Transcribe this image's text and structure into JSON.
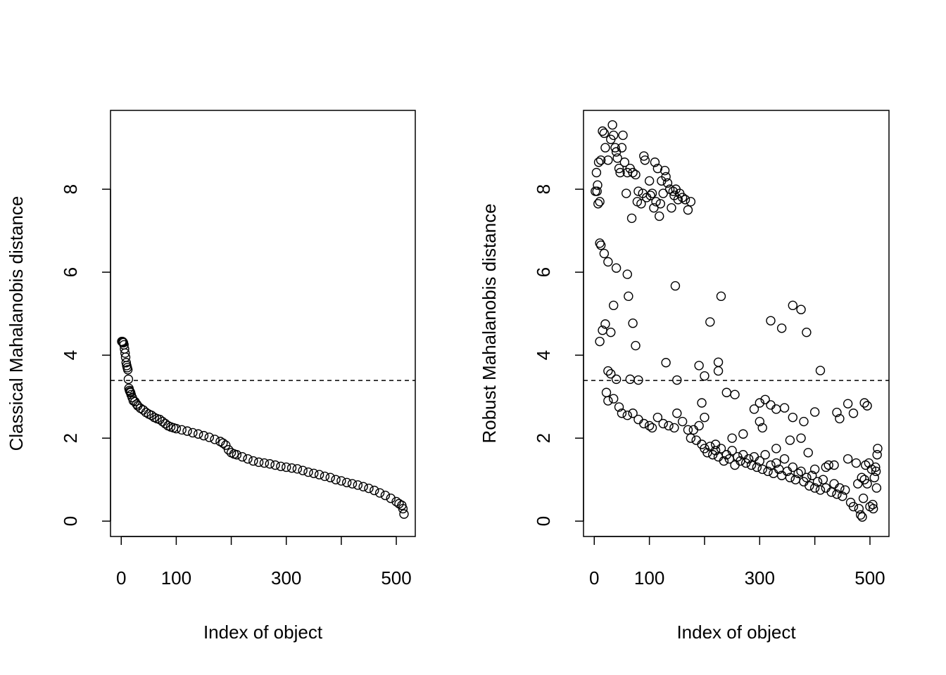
{
  "chart_data": [
    {
      "type": "scatter",
      "y_label": "Classical Mahalanobis distance",
      "x_label": "Index of object",
      "color": "#000000",
      "xlim": [
        -19.5,
        534.5
      ],
      "ylim": [
        -0.37,
        9.9
      ],
      "xticks": [
        0,
        100,
        {
          "value": 200,
          "label": null
        },
        300,
        {
          "value": 400,
          "label": null
        },
        500
      ],
      "yticks": [
        0,
        2,
        4,
        6,
        8
      ],
      "hline": 3.39,
      "x": [
        1,
        2,
        3,
        4,
        5,
        6,
        7,
        8,
        9,
        10,
        11,
        12,
        13,
        14,
        15,
        16,
        17,
        18,
        20,
        22,
        25,
        28,
        30,
        35,
        40,
        45,
        50,
        55,
        60,
        65,
        70,
        75,
        80,
        85,
        90,
        95,
        100,
        110,
        120,
        130,
        140,
        150,
        160,
        170,
        180,
        185,
        190,
        195,
        200,
        205,
        210,
        220,
        230,
        240,
        250,
        260,
        270,
        280,
        290,
        300,
        310,
        320,
        330,
        340,
        350,
        360,
        370,
        380,
        390,
        400,
        410,
        420,
        430,
        440,
        450,
        460,
        470,
        480,
        490,
        500,
        505,
        510,
        512,
        514
      ],
      "values": [
        4.33,
        4.33,
        4.32,
        4.3,
        4.25,
        4.15,
        4.05,
        3.95,
        3.82,
        3.75,
        3.7,
        3.65,
        3.42,
        3.2,
        3.15,
        3.12,
        3.1,
        3.05,
        2.98,
        2.9,
        2.88,
        2.82,
        2.78,
        2.72,
        2.68,
        2.62,
        2.58,
        2.55,
        2.5,
        2.47,
        2.45,
        2.4,
        2.35,
        2.3,
        2.27,
        2.25,
        2.23,
        2.2,
        2.17,
        2.13,
        2.1,
        2.06,
        2.02,
        1.97,
        1.92,
        1.88,
        1.83,
        1.72,
        1.65,
        1.62,
        1.6,
        1.55,
        1.5,
        1.45,
        1.42,
        1.4,
        1.38,
        1.35,
        1.32,
        1.3,
        1.28,
        1.26,
        1.22,
        1.18,
        1.15,
        1.12,
        1.08,
        1.05,
        1.0,
        0.97,
        0.93,
        0.9,
        0.87,
        0.83,
        0.79,
        0.74,
        0.68,
        0.62,
        0.55,
        0.47,
        0.42,
        0.38,
        0.3,
        0.17
      ]
    },
    {
      "type": "scatter",
      "y_label": "Robust Mahalanobis distance",
      "x_label": "Index of object",
      "color": "#000000",
      "xlim": [
        -19.5,
        534.5
      ],
      "ylim": [
        -0.37,
        9.9
      ],
      "xticks": [
        0,
        100,
        {
          "value": 200,
          "label": null
        },
        300,
        {
          "value": 400,
          "label": null
        },
        500
      ],
      "yticks": [
        0,
        2,
        4,
        6,
        8
      ],
      "hline": 3.39,
      "x": [
        2,
        4,
        5,
        6,
        7,
        8,
        10,
        12,
        15,
        18,
        20,
        25,
        30,
        33,
        35,
        38,
        40,
        42,
        45,
        47,
        50,
        52,
        55,
        58,
        60,
        65,
        68,
        70,
        75,
        78,
        80,
        85,
        88,
        90,
        92,
        95,
        100,
        102,
        105,
        108,
        110,
        112,
        115,
        118,
        120,
        122,
        125,
        128,
        130,
        133,
        137,
        140,
        143,
        145,
        148,
        152,
        155,
        160,
        165,
        170,
        175,
        10,
        12,
        18,
        25,
        40,
        60,
        62,
        147,
        230,
        35,
        70,
        20,
        15,
        10,
        30,
        75,
        210,
        320,
        340,
        360,
        375,
        385,
        130,
        225,
        190,
        225,
        25,
        30,
        40,
        65,
        80,
        150,
        410,
        200,
        240,
        255,
        310,
        300,
        320,
        330,
        345,
        290,
        400,
        440,
        470,
        490,
        495,
        460,
        445,
        380,
        360,
        300,
        305,
        200,
        195,
        22,
        25,
        35,
        45,
        50,
        60,
        70,
        80,
        90,
        100,
        105,
        115,
        125,
        135,
        145,
        150,
        160,
        170,
        175,
        180,
        185,
        190,
        195,
        200,
        205,
        210,
        215,
        220,
        225,
        230,
        235,
        240,
        245,
        250,
        255,
        260,
        265,
        270,
        275,
        280,
        285,
        290,
        295,
        300,
        305,
        310,
        315,
        320,
        325,
        330,
        335,
        340,
        345,
        350,
        355,
        360,
        365,
        370,
        375,
        380,
        385,
        390,
        395,
        400,
        405,
        410,
        415,
        420,
        425,
        430,
        435,
        440,
        445,
        450,
        455,
        460,
        465,
        470,
        475,
        480,
        483,
        486,
        488,
        490,
        492,
        495,
        498,
        500,
        503,
        505,
        508,
        510,
        512,
        514,
        513,
        511,
        506,
        485,
        478,
        220,
        250,
        270,
        330,
        355,
        375,
        388,
        400,
        420,
        435
      ],
      "values": [
        7.95,
        8.4,
        7.95,
        8.1,
        7.65,
        8.65,
        7.7,
        8.7,
        9.4,
        9.35,
        9.0,
        8.7,
        9.2,
        9.55,
        9.3,
        9.0,
        8.9,
        8.75,
        8.5,
        8.4,
        9.0,
        9.3,
        8.65,
        7.9,
        8.4,
        8.5,
        7.3,
        8.4,
        8.35,
        7.7,
        7.95,
        7.65,
        7.9,
        8.8,
        8.7,
        7.8,
        8.2,
        7.85,
        7.9,
        7.55,
        8.65,
        7.7,
        8.5,
        7.35,
        7.65,
        8.2,
        7.9,
        8.45,
        8.3,
        8.15,
        8.0,
        7.55,
        7.95,
        7.85,
        8.0,
        7.75,
        7.9,
        7.8,
        7.75,
        7.5,
        7.7,
        6.7,
        6.65,
        6.45,
        6.25,
        6.1,
        5.95,
        5.42,
        5.67,
        5.42,
        5.2,
        4.77,
        4.75,
        4.6,
        4.33,
        4.55,
        4.23,
        4.8,
        4.83,
        4.65,
        5.2,
        5.1,
        4.55,
        3.82,
        3.83,
        3.75,
        3.62,
        3.62,
        3.55,
        3.42,
        3.42,
        3.4,
        3.4,
        3.63,
        3.5,
        3.1,
        3.05,
        2.93,
        2.85,
        2.8,
        2.7,
        2.73,
        2.7,
        2.63,
        2.62,
        2.6,
        2.85,
        2.78,
        2.83,
        2.47,
        2.4,
        2.5,
        2.4,
        2.25,
        2.5,
        2.85,
        3.1,
        2.9,
        2.95,
        2.75,
        2.6,
        2.55,
        2.6,
        2.45,
        2.35,
        2.3,
        2.25,
        2.5,
        2.35,
        2.3,
        2.25,
        2.6,
        2.4,
        2.2,
        2.0,
        2.2,
        1.95,
        2.3,
        1.85,
        1.75,
        1.65,
        1.8,
        1.6,
        1.7,
        1.55,
        1.75,
        1.45,
        1.6,
        1.5,
        1.7,
        1.35,
        1.55,
        1.45,
        1.6,
        1.4,
        1.5,
        1.35,
        1.55,
        1.3,
        1.45,
        1.25,
        1.6,
        1.2,
        1.35,
        1.15,
        1.4,
        1.25,
        1.1,
        1.5,
        1.2,
        1.05,
        1.3,
        1.0,
        1.15,
        1.2,
        0.95,
        1.05,
        0.85,
        1.1,
        0.8,
        0.95,
        0.75,
        1.0,
        0.8,
        1.35,
        0.7,
        0.9,
        0.65,
        0.8,
        0.6,
        0.75,
        1.5,
        0.45,
        0.35,
        1.4,
        0.3,
        0.15,
        0.1,
        0.55,
        1.0,
        1.35,
        0.9,
        1.4,
        0.35,
        1.25,
        0.4,
        1.05,
        1.3,
        0.8,
        1.75,
        1.6,
        1.2,
        0.3,
        1.05,
        0.9,
        1.85,
        2.0,
        2.1,
        1.75,
        1.95,
        2.0,
        1.65,
        1.25,
        1.3,
        1.35
      ]
    }
  ]
}
